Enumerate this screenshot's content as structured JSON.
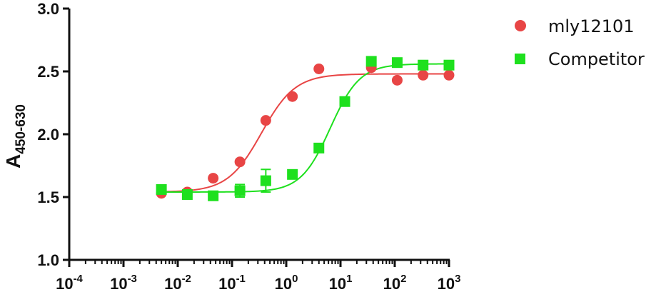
{
  "chart_data": {
    "type": "scatter",
    "x_scale": "log",
    "xlim": [
      0.0001,
      1000
    ],
    "ylim": [
      1.0,
      3.0
    ],
    "x_ticks": [
      {
        "base": "10",
        "exp": "-4",
        "value": 0.0001
      },
      {
        "base": "10",
        "exp": "-3",
        "value": 0.001
      },
      {
        "base": "10",
        "exp": "-2",
        "value": 0.01
      },
      {
        "base": "10",
        "exp": "-1",
        "value": 0.1
      },
      {
        "base": "10",
        "exp": "0",
        "value": 1
      },
      {
        "base": "10",
        "exp": "1",
        "value": 10
      },
      {
        "base": "10",
        "exp": "2",
        "value": 100
      },
      {
        "base": "10",
        "exp": "3",
        "value": 1000
      }
    ],
    "y_ticks": [
      {
        "label": "1.0",
        "value": 1.0
      },
      {
        "label": "1.5",
        "value": 1.5
      },
      {
        "label": "2.0",
        "value": 2.0
      },
      {
        "label": "2.5",
        "value": 2.5
      },
      {
        "label": "3.0",
        "value": 3.0
      }
    ],
    "ylabel": {
      "main": "A",
      "sub": "450-630"
    },
    "xlabel": "",
    "legend_position": "top-right",
    "series": [
      {
        "name": "mly12101",
        "marker": "circle",
        "color": "#e84545",
        "x": [
          0.005,
          0.015,
          0.045,
          0.14,
          0.42,
          1.3,
          4.0,
          37,
          111,
          333,
          1000
        ],
        "y": [
          1.53,
          1.54,
          1.65,
          1.78,
          2.11,
          2.3,
          2.52,
          2.53,
          2.43,
          2.47,
          2.47
        ],
        "err": [
          0,
          0,
          0,
          0,
          0,
          0,
          0,
          0,
          0,
          0,
          0
        ],
        "fit": {
          "bottom": 1.54,
          "top": 2.48,
          "ec50": 0.35,
          "hill": 1.4
        }
      },
      {
        "name": "Competitor",
        "marker": "square",
        "color": "#1ee01e",
        "x": [
          0.005,
          0.015,
          0.045,
          0.14,
          0.42,
          1.3,
          4.0,
          12,
          37,
          111,
          333,
          1000
        ],
        "y": [
          1.56,
          1.52,
          1.51,
          1.55,
          1.63,
          1.68,
          1.89,
          2.26,
          2.58,
          2.57,
          2.55,
          2.55
        ],
        "err": [
          0,
          0,
          0,
          0.05,
          0.09,
          0,
          0.03,
          0,
          0,
          0,
          0,
          0
        ],
        "fit": {
          "bottom": 1.54,
          "top": 2.56,
          "ec50": 6.5,
          "hill": 1.6
        }
      }
    ]
  }
}
